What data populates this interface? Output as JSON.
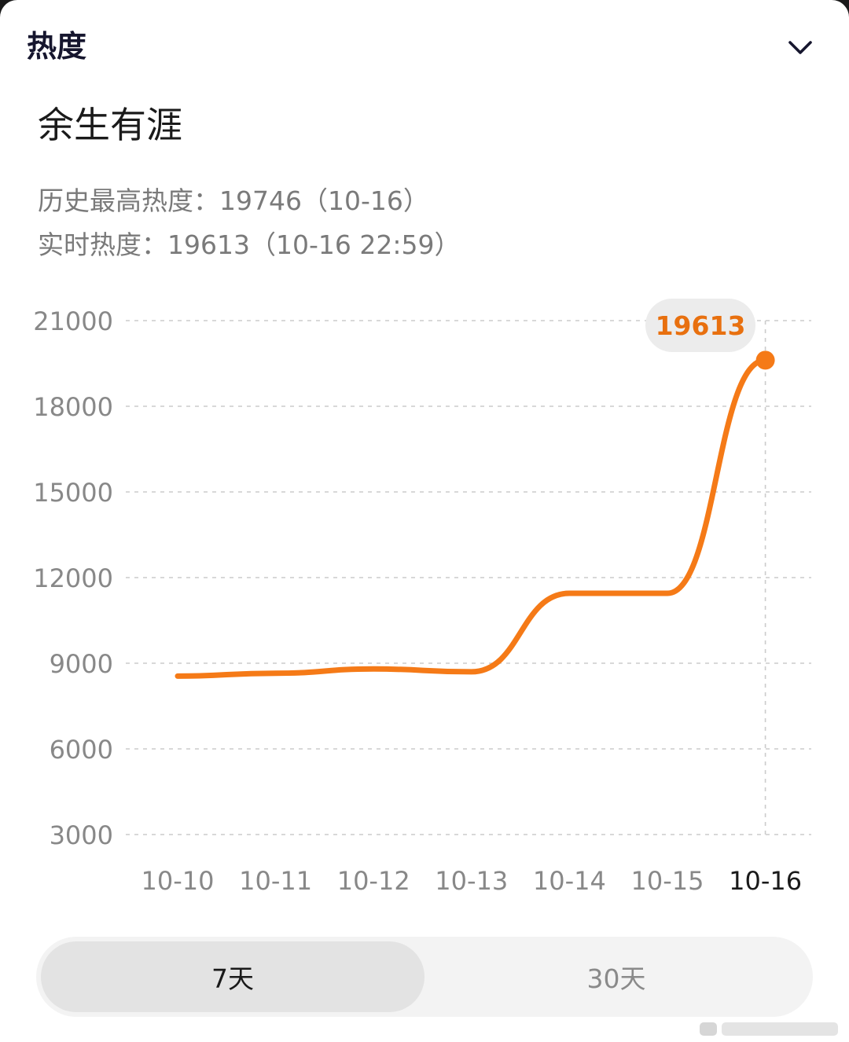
{
  "header": {
    "section_title": "热度",
    "collapse_icon": "chevron-down-icon"
  },
  "topic": {
    "title": "余生有涯",
    "peak_line": "历史最高热度：19746（10-16）",
    "realtime_line": "实时热度：19613（10-16 22:59）"
  },
  "chart_data": {
    "type": "line",
    "categories": [
      "10-10",
      "10-11",
      "10-12",
      "10-13",
      "10-14",
      "10-15",
      "10-16"
    ],
    "series": [
      {
        "values": [
          8550,
          8650,
          8800,
          8700,
          11450,
          11450,
          19613
        ]
      }
    ],
    "ylim": [
      3000,
      21000
    ],
    "yticks": [
      21000,
      18000,
      15000,
      12000,
      9000,
      6000,
      3000
    ],
    "grid": true,
    "highlight": {
      "category": "10-16",
      "label": "19613"
    },
    "colors": {
      "line": "#f57a17",
      "badge_bg": "#ececec",
      "badge_text": "#e8700f",
      "grid": "#cccccc",
      "axis_text": "#888888",
      "axis_text_active": "#1a1a1a"
    }
  },
  "range_toggle": {
    "options": [
      {
        "label": "7天",
        "active": true
      },
      {
        "label": "30天",
        "active": false
      }
    ]
  }
}
